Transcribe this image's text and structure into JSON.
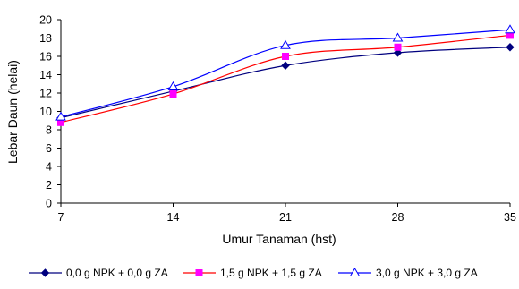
{
  "chart_data": {
    "type": "line",
    "x": [
      7,
      14,
      21,
      28,
      35
    ],
    "xlabel": "Umur Tanaman (hst)",
    "ylabel": "Lebar Daun (helai)",
    "xlim": [
      7,
      35
    ],
    "ylim": [
      0,
      20
    ],
    "yticks": [
      0,
      2,
      4,
      6,
      8,
      10,
      12,
      14,
      16,
      18,
      20
    ],
    "xticks": [
      7,
      14,
      21,
      28,
      35
    ],
    "grid": false,
    "legend_position": "bottom",
    "series": [
      {
        "name": "0,0 g NPK + 0,0 g ZA",
        "values": [
          9.3,
          12.2,
          15.0,
          16.4,
          17.0
        ],
        "color": "#00007f",
        "marker": "diamond"
      },
      {
        "name": "1,5 g NPK + 1,5 g ZA",
        "values": [
          8.8,
          11.9,
          16.0,
          17.0,
          18.3
        ],
        "color": "#ff0000",
        "marker": "square",
        "marker_color": "#ff00ff"
      },
      {
        "name": "3,0 g NPK + 3,0 g ZA",
        "values": [
          9.4,
          12.7,
          17.2,
          18.0,
          18.9
        ],
        "color": "#0000ff",
        "marker": "triangle"
      }
    ]
  }
}
